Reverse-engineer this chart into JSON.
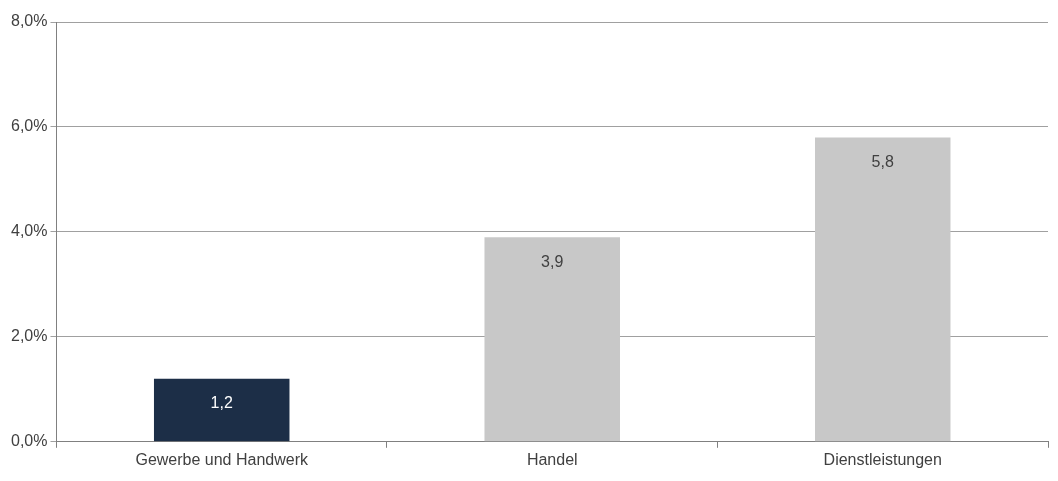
{
  "chart_data": {
    "type": "bar",
    "categories": [
      "Gewerbe und Handwerk",
      "Handel",
      "Dienstleistungen"
    ],
    "values": [
      1.2,
      3.9,
      5.8
    ],
    "colors": [
      "#1c2e47",
      "#c8c8c8",
      "#c8c8c8"
    ],
    "value_labels": [
      "1,2",
      "3,9",
      "5,8"
    ],
    "ylim": [
      0,
      8
    ],
    "yticks": [
      {
        "value": 0,
        "label": "0,0%"
      },
      {
        "value": 2,
        "label": "2,0%"
      },
      {
        "value": 4,
        "label": "4,0%"
      },
      {
        "value": 6,
        "label": "6,0%"
      },
      {
        "value": 8,
        "label": "8,0%"
      }
    ],
    "grid": "y",
    "legend": false
  }
}
